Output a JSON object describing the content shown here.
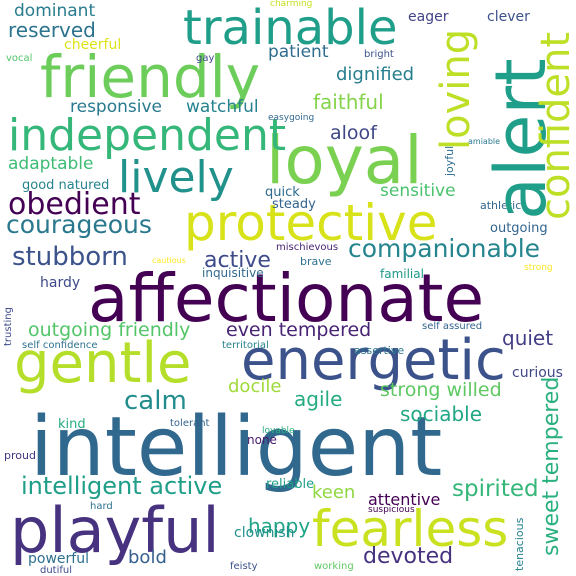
{
  "words": [
    {
      "text": "affectionate",
      "color": "#440154"
    },
    {
      "text": "intelligent",
      "color": "#31688e"
    },
    {
      "text": "loyal",
      "color": "#7ad151"
    },
    {
      "text": "friendly",
      "color": "#6ccd5a"
    },
    {
      "text": "energetic",
      "color": "#3b528b"
    },
    {
      "text": "playful",
      "color": "#46327e"
    },
    {
      "text": "protective",
      "color": "#d8e219"
    },
    {
      "text": "trainable",
      "color": "#1f9e89"
    },
    {
      "text": "alert",
      "color": "#1f9e89"
    },
    {
      "text": "gentle",
      "color": "#b5de2b"
    },
    {
      "text": "fearless",
      "color": "#cae11f"
    },
    {
      "text": "independent",
      "color": "#35b779"
    },
    {
      "text": "lively",
      "color": "#21918c"
    },
    {
      "text": "confident",
      "color": "#bddf26"
    },
    {
      "text": "loving",
      "color": "#bddf26"
    },
    {
      "text": "courageous",
      "color": "#2a788e"
    },
    {
      "text": "obedient",
      "color": "#440154"
    },
    {
      "text": "companionable",
      "color": "#25858e"
    },
    {
      "text": "stubborn",
      "color": "#3b528b"
    },
    {
      "text": "calm",
      "color": "#228c8d"
    },
    {
      "text": "intelligent active",
      "color": "#1f9e89"
    },
    {
      "text": "spirited",
      "color": "#35b779"
    },
    {
      "text": "sweet tempered",
      "color": "#2ab07f"
    },
    {
      "text": "devoted",
      "color": "#46327e"
    },
    {
      "text": "happy",
      "color": "#20a486"
    },
    {
      "text": "even tempered",
      "color": "#482475"
    },
    {
      "text": "active",
      "color": "#3e4a89"
    },
    {
      "text": "quiet",
      "color": "#433e85"
    },
    {
      "text": "agile",
      "color": "#25ab82"
    },
    {
      "text": "sociable",
      "color": "#22a785"
    },
    {
      "text": "strong willed",
      "color": "#5ec962"
    },
    {
      "text": "outgoing friendly",
      "color": "#52c569"
    },
    {
      "text": "reserved",
      "color": "#2c738e"
    },
    {
      "text": "dominant",
      "color": "#287c8e"
    },
    {
      "text": "faithful",
      "color": "#84d44b"
    },
    {
      "text": "dignified",
      "color": "#277f8e"
    },
    {
      "text": "patient",
      "color": "#2f6c8e"
    },
    {
      "text": "aloof",
      "color": "#3f4788"
    },
    {
      "text": "responsive",
      "color": "#29798e"
    },
    {
      "text": "watchful",
      "color": "#26828e"
    },
    {
      "text": "adaptable",
      "color": "#3dbc74"
    },
    {
      "text": "sensitive",
      "color": "#4ac16d"
    },
    {
      "text": "keen",
      "color": "#90d743"
    },
    {
      "text": "bold",
      "color": "#355f8d"
    },
    {
      "text": "docile",
      "color": "#9fda3a"
    },
    {
      "text": "attentive",
      "color": "#440154"
    },
    {
      "text": "curious",
      "color": "#3f4788"
    },
    {
      "text": "cheerful",
      "color": "#dde318"
    },
    {
      "text": "eager",
      "color": "#414487"
    },
    {
      "text": "clever",
      "color": "#3b528b"
    },
    {
      "text": "steady",
      "color": "#32648e"
    },
    {
      "text": "quick",
      "color": "#2f6c8e"
    },
    {
      "text": "good natured",
      "color": "#26828e"
    },
    {
      "text": "athletic",
      "color": "#31688e"
    },
    {
      "text": "outgoing",
      "color": "#32648e"
    },
    {
      "text": "hardy",
      "color": "#3e4a89"
    },
    {
      "text": "familial",
      "color": "#1f9a8a"
    },
    {
      "text": "inquisitive",
      "color": "#31688e"
    },
    {
      "text": "brave",
      "color": "#2c728e"
    },
    {
      "text": "mischievous",
      "color": "#482475"
    },
    {
      "text": "kind",
      "color": "#25ab82"
    },
    {
      "text": "tolerant",
      "color": "#33638d"
    },
    {
      "text": "none",
      "color": "#481b6d"
    },
    {
      "text": "clownish",
      "color": "#21918c"
    },
    {
      "text": "powerful",
      "color": "#2d708e"
    },
    {
      "text": "reliable",
      "color": "#1f9e89"
    },
    {
      "text": "assertive",
      "color": "#2a788e"
    },
    {
      "text": "territorial",
      "color": "#26828e"
    },
    {
      "text": "self assured",
      "color": "#32648e"
    },
    {
      "text": "self confidence",
      "color": "#2c728e"
    },
    {
      "text": "trusting",
      "color": "#3e4a89"
    },
    {
      "text": "lovable",
      "color": "#2ab07f"
    },
    {
      "text": "proud",
      "color": "#463480"
    },
    {
      "text": "hard",
      "color": "#2d708e"
    },
    {
      "text": "suspicious",
      "color": "#440154"
    },
    {
      "text": "working",
      "color": "#5ec962"
    },
    {
      "text": "dutiful",
      "color": "#3e4a89"
    },
    {
      "text": "feisty",
      "color": "#3b528b"
    },
    {
      "text": "vocal",
      "color": "#52c569"
    },
    {
      "text": "gay",
      "color": "#3e4a89"
    },
    {
      "text": "bright",
      "color": "#3b528b"
    },
    {
      "text": "charming",
      "color": "#c8e020"
    },
    {
      "text": "easygoing",
      "color": "#31688e"
    },
    {
      "text": "amiable",
      "color": "#2a788e"
    },
    {
      "text": "joyful",
      "color": "#2f6c8e"
    },
    {
      "text": "cautious",
      "color": "#fde725"
    },
    {
      "text": "strong",
      "color": "#fde725"
    },
    {
      "text": "tenacious",
      "color": "#26828e"
    }
  ]
}
